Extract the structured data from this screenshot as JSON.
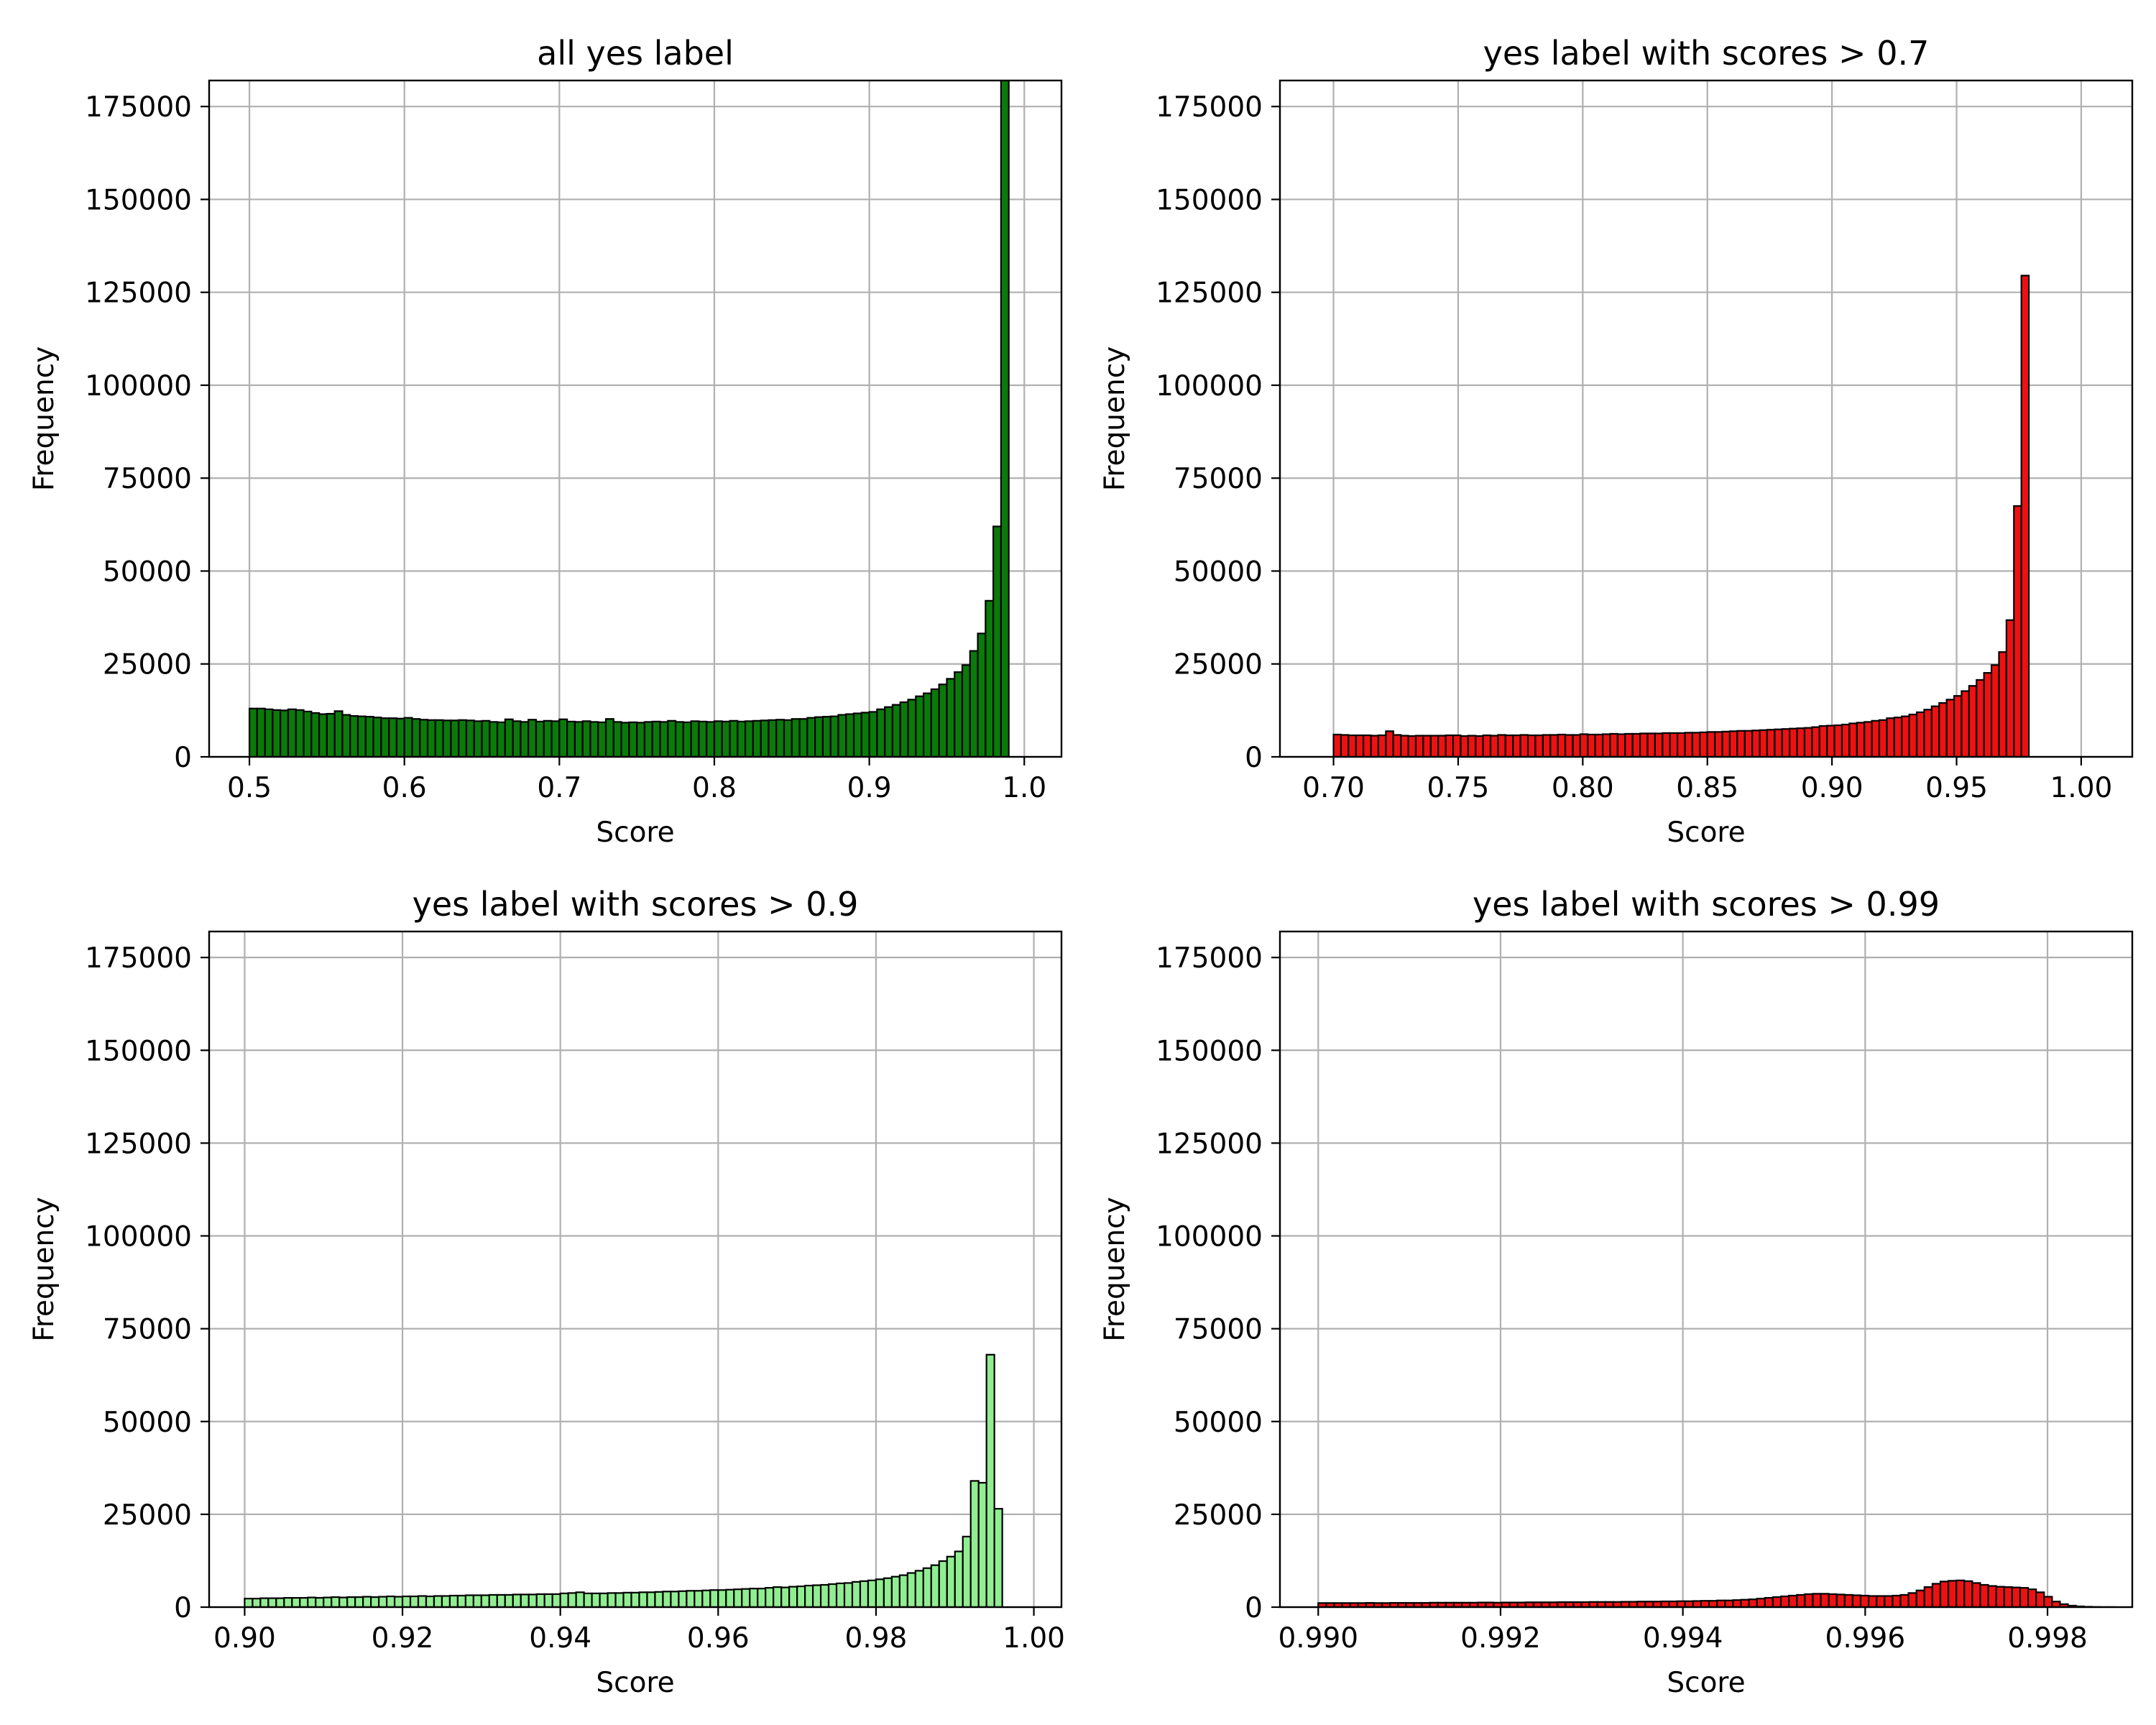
{
  "colors": {
    "dark_green": "#0a7a0a",
    "red": "#ee1111",
    "light_green": "#90ee90",
    "grid": "#b0b0b0",
    "edge": "#000000"
  },
  "chart_data": [
    {
      "type": "bar",
      "title": "all yes label",
      "xlabel": "Score",
      "ylabel": "Frequency",
      "xlim": [
        0.474,
        1.024
      ],
      "ylim": [
        0,
        182000
      ],
      "xticks": [
        0.5,
        0.6,
        0.7,
        0.8,
        0.9,
        1.0
      ],
      "xtick_labels": [
        "0.5",
        "0.6",
        "0.7",
        "0.8",
        "0.9",
        "1.0"
      ],
      "yticks": [
        0,
        25000,
        50000,
        75000,
        100000,
        125000,
        150000,
        175000
      ],
      "ytick_labels": [
        "0",
        "25000",
        "50000",
        "75000",
        "100000",
        "125000",
        "150000",
        "175000"
      ],
      "grid": true,
      "color": "#0a7a0a",
      "bin_start": 0.5,
      "bin_width": 0.005,
      "values": [
        13000,
        13000,
        12800,
        12600,
        12500,
        12800,
        12600,
        12200,
        11800,
        11500,
        11600,
        12300,
        11300,
        11000,
        10900,
        10800,
        10600,
        10400,
        10400,
        10300,
        10500,
        10200,
        10000,
        9900,
        9900,
        9800,
        9800,
        9900,
        9800,
        9600,
        9700,
        9400,
        9300,
        10100,
        9600,
        9400,
        10000,
        9500,
        9700,
        9600,
        10100,
        9500,
        9400,
        9600,
        9400,
        9300,
        10200,
        9400,
        9200,
        9300,
        9200,
        9400,
        9500,
        9400,
        9700,
        9400,
        9300,
        9600,
        9500,
        9400,
        9600,
        9500,
        9700,
        9500,
        9600,
        9700,
        9800,
        9900,
        10000,
        9900,
        10200,
        10200,
        10500,
        10700,
        10800,
        10900,
        11300,
        11500,
        11700,
        11900,
        12100,
        12800,
        13400,
        14000,
        14700,
        15400,
        16300,
        17100,
        18200,
        19500,
        21000,
        22800,
        24700,
        28500,
        33200,
        42000,
        62000,
        183000
      ]
    },
    {
      "type": "bar",
      "title": "yes label with scores > 0.7",
      "xlabel": "Score",
      "ylabel": "Frequency",
      "xlim": [
        0.6785,
        1.0205
      ],
      "ylim": [
        0,
        182000
      ],
      "xticks": [
        0.7,
        0.75,
        0.8,
        0.85,
        0.9,
        0.95,
        1.0
      ],
      "xtick_labels": [
        "0.70",
        "0.75",
        "0.80",
        "0.85",
        "0.90",
        "0.95",
        "1.00"
      ],
      "yticks": [
        0,
        25000,
        50000,
        75000,
        100000,
        125000,
        150000,
        175000
      ],
      "ytick_labels": [
        "0",
        "25000",
        "50000",
        "75000",
        "100000",
        "125000",
        "150000",
        "175000"
      ],
      "grid": true,
      "color": "#ee1111",
      "bin_start": 0.7,
      "bin_width": 0.003,
      "values": [
        6000,
        5900,
        5800,
        5800,
        5800,
        5700,
        5800,
        6900,
        5900,
        5700,
        5600,
        5700,
        5700,
        5700,
        5700,
        5800,
        5800,
        5600,
        5700,
        5600,
        5800,
        5700,
        5900,
        5800,
        5800,
        5900,
        5800,
        5800,
        5900,
        5900,
        6000,
        5900,
        5900,
        6100,
        6000,
        6000,
        6100,
        6200,
        6100,
        6200,
        6200,
        6300,
        6300,
        6300,
        6400,
        6400,
        6400,
        6500,
        6500,
        6600,
        6700,
        6700,
        6800,
        6900,
        7000,
        7000,
        7100,
        7200,
        7300,
        7400,
        7500,
        7600,
        7700,
        7800,
        8000,
        8300,
        8400,
        8500,
        8700,
        9000,
        9200,
        9400,
        9700,
        9900,
        10400,
        10600,
        10900,
        11400,
        12000,
        12700,
        13600,
        14500,
        15400,
        16400,
        17700,
        19100,
        20700,
        22600,
        24700,
        28200,
        36800,
        67500,
        129500
      ]
    },
    {
      "type": "bar",
      "title": "yes label with scores > 0.9",
      "xlabel": "Score",
      "ylabel": "Frequency",
      "xlim": [
        0.8955,
        1.0035
      ],
      "ylim": [
        0,
        182000
      ],
      "xticks": [
        0.9,
        0.92,
        0.94,
        0.96,
        0.98,
        1.0
      ],
      "xtick_labels": [
        "0.90",
        "0.92",
        "0.94",
        "0.96",
        "0.98",
        "1.00"
      ],
      "yticks": [
        0,
        25000,
        50000,
        75000,
        100000,
        125000,
        150000,
        175000
      ],
      "ytick_labels": [
        "0",
        "25000",
        "50000",
        "75000",
        "100000",
        "125000",
        "150000",
        "175000"
      ],
      "grid": true,
      "color": "#90ee90",
      "bin_start": 0.9,
      "bin_width": 0.001,
      "values": [
        2300,
        2300,
        2400,
        2400,
        2400,
        2500,
        2500,
        2500,
        2600,
        2500,
        2600,
        2700,
        2600,
        2700,
        2700,
        2800,
        2700,
        2800,
        2900,
        2800,
        2900,
        2900,
        3000,
        2900,
        3000,
        3000,
        3100,
        3100,
        3200,
        3200,
        3200,
        3300,
        3300,
        3300,
        3400,
        3400,
        3400,
        3500,
        3500,
        3500,
        3700,
        3800,
        4000,
        3700,
        3700,
        3700,
        3800,
        3800,
        3900,
        3900,
        4000,
        4000,
        4100,
        4200,
        4200,
        4300,
        4400,
        4400,
        4500,
        4600,
        4600,
        4700,
        4800,
        4900,
        5000,
        5000,
        5200,
        5400,
        5300,
        5500,
        5600,
        5800,
        5900,
        6000,
        6200,
        6400,
        6500,
        6800,
        7000,
        7200,
        7500,
        7800,
        8200,
        8600,
        9200,
        9800,
        10500,
        11300,
        12400,
        13600,
        15000,
        19000,
        34000,
        33500,
        68000,
        26500
      ]
    },
    {
      "type": "bar",
      "title": "yes label with scores > 0.99",
      "xlabel": "Score",
      "ylabel": "Frequency",
      "xlim": [
        0.98958,
        0.99893
      ],
      "ylim": [
        0,
        182000
      ],
      "xticks": [
        0.99,
        0.992,
        0.994,
        0.996,
        0.998
      ],
      "xtick_labels": [
        "0.990",
        "0.992",
        "0.994",
        "0.996",
        "0.998"
      ],
      "yticks": [
        0,
        25000,
        50000,
        75000,
        100000,
        125000,
        150000,
        175000
      ],
      "ytick_labels": [
        "0",
        "25000",
        "50000",
        "75000",
        "100000",
        "125000",
        "150000",
        "175000"
      ],
      "grid": true,
      "color": "#ee1111",
      "bin_start": 0.99,
      "bin_width": 8.75e-05,
      "values": [
        1100,
        1100,
        1100,
        1100,
        1100,
        1100,
        1150,
        1100,
        1100,
        1150,
        1150,
        1150,
        1150,
        1150,
        1200,
        1200,
        1200,
        1200,
        1200,
        1200,
        1250,
        1250,
        1200,
        1250,
        1250,
        1250,
        1300,
        1300,
        1300,
        1300,
        1350,
        1350,
        1350,
        1350,
        1400,
        1400,
        1400,
        1400,
        1450,
        1450,
        1500,
        1500,
        1500,
        1550,
        1550,
        1600,
        1600,
        1650,
        1700,
        1700,
        1800,
        1800,
        1900,
        2000,
        2100,
        2300,
        2500,
        2700,
        2900,
        3100,
        3300,
        3500,
        3600,
        3600,
        3500,
        3400,
        3300,
        3200,
        3100,
        3000,
        3000,
        3000,
        3100,
        3300,
        3800,
        4500,
        5400,
        6300,
        6900,
        7100,
        7200,
        7000,
        6500,
        6000,
        5700,
        5500,
        5400,
        5300,
        5200,
        4800,
        4000,
        2800,
        1500,
        800,
        400,
        200,
        100,
        40,
        10,
        5
      ]
    }
  ]
}
